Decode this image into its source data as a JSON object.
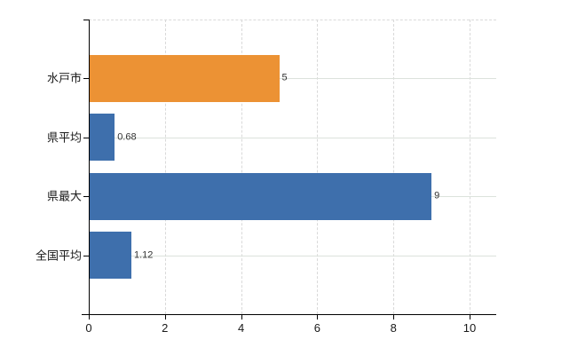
{
  "figure": {
    "background": "#ffffff"
  },
  "chart_data": {
    "type": "bar",
    "orientation": "horizontal",
    "title": "",
    "xlabel": "",
    "ylabel": "",
    "legend": null,
    "categories": [
      "水戸市",
      "県平均",
      "県最大",
      "全国平均"
    ],
    "values": [
      5,
      0.68,
      9,
      1.12
    ],
    "value_labels": [
      "5",
      "0.68",
      "9",
      "1.12"
    ],
    "bar_colors": [
      "#ec9234",
      "#3e6fac",
      "#3e6fac",
      "#3e6fac"
    ],
    "x_ticks": [
      0,
      2,
      4,
      6,
      8,
      10
    ],
    "x_tick_labels": [
      "0",
      "2",
      "4",
      "6",
      "8",
      "10"
    ],
    "xlim": [
      0,
      10.7
    ],
    "grid": {
      "vertical_gridlines": "dashed at x = 2,4,6,8,10",
      "horizontal_gridlines": "solid at each category center",
      "top_border": "dashed"
    },
    "colors": {
      "axis": "#000000",
      "grid_vertical": "#d9d9d9",
      "grid_horizontal": "#dce2dc",
      "tick_label": "#1a1a1a",
      "category_label": "#1a1a1a",
      "value_label": "#333333",
      "orange_series": "#ec9234",
      "blue_series": "#3e6fac",
      "background": "#ffffff"
    }
  }
}
